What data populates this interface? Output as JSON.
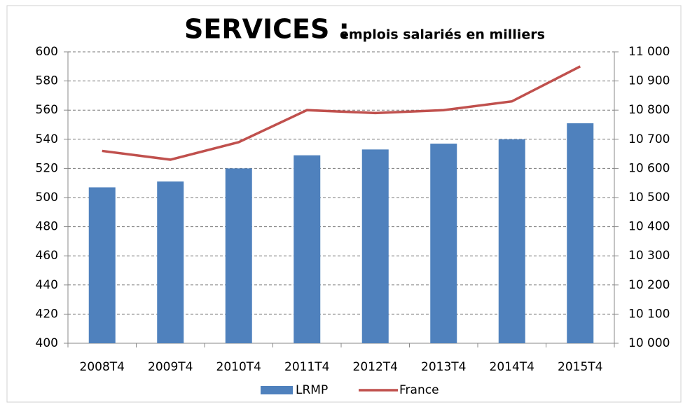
{
  "chart_data": {
    "type": "bar_line",
    "title": "SERVICES :",
    "subtitle": "emplois salariés en milliers",
    "categories": [
      "2008T4",
      "2009T4",
      "2010T4",
      "2011T4",
      "2012T4",
      "2013T4",
      "2014T4",
      "2015T4"
    ],
    "series": [
      {
        "name": "LRMP",
        "type": "bar",
        "color": "#4f81bd",
        "values": [
          507,
          511,
          520,
          529,
          533,
          537,
          540,
          551
        ]
      },
      {
        "name": "France",
        "type": "line",
        "axis": "y2",
        "color": "#c0504d",
        "values": [
          10660,
          10630,
          10690,
          10800,
          10790,
          10800,
          10830,
          10950
        ]
      }
    ],
    "ylim": [
      400,
      600
    ],
    "yticks": [
      400,
      420,
      440,
      460,
      480,
      500,
      520,
      540,
      560,
      580,
      600
    ],
    "y2lim": [
      10000,
      11000
    ],
    "y2ticks": [
      {
        "value": 10000,
        "label": "10 000"
      },
      {
        "value": 10100,
        "label": "10 100"
      },
      {
        "value": 10200,
        "label": "10 200"
      },
      {
        "value": 10300,
        "label": "10 300"
      },
      {
        "value": 10400,
        "label": "10 400"
      },
      {
        "value": 10500,
        "label": "10 500"
      },
      {
        "value": 10600,
        "label": "10 600"
      },
      {
        "value": 10700,
        "label": "10 700"
      },
      {
        "value": 10800,
        "label": "10 800"
      },
      {
        "value": 10900,
        "label": "10 900"
      },
      {
        "value": 11000,
        "label": "11 000"
      }
    ],
    "grid": true,
    "legend": "bottom"
  }
}
